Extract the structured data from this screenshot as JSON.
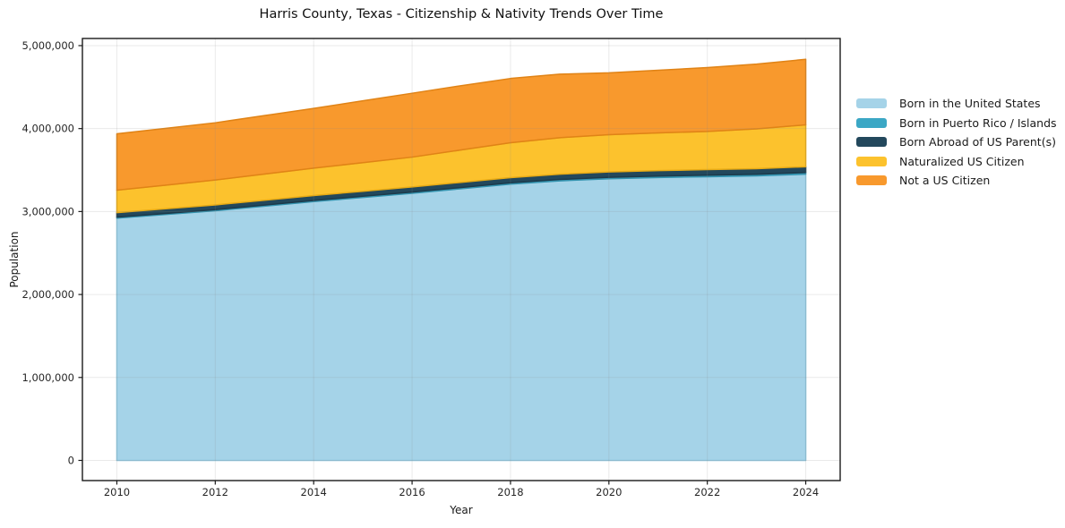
{
  "chart_data": {
    "type": "area",
    "stacked": true,
    "title": "Harris County, Texas - Citizenship & Nativity Trends Over Time",
    "xlabel": "Year",
    "ylabel": "Population",
    "x": [
      2010,
      2011,
      2012,
      2013,
      2014,
      2015,
      2016,
      2017,
      2018,
      2019,
      2020,
      2021,
      2022,
      2023,
      2024
    ],
    "series": [
      {
        "name": "Born in the United States",
        "color": "#a5d3e8",
        "edge": "#8ec6de",
        "values": [
          2920000,
          2965000,
          3010000,
          3065000,
          3120000,
          3170000,
          3220000,
          3275000,
          3330000,
          3370000,
          3395000,
          3410000,
          3420000,
          3430000,
          3450000
        ]
      },
      {
        "name": "Born in Puerto Rico / Islands",
        "color": "#3ba7c5",
        "edge": "#3494b0",
        "values": [
          12000,
          12500,
          13000,
          13500,
          14000,
          14500,
          15000,
          15500,
          16000,
          16500,
          17000,
          17500,
          18000,
          19000,
          20000
        ]
      },
      {
        "name": "Born Abroad of US Parent(s)",
        "color": "#23485c",
        "edge": "#1c3a4b",
        "values": [
          55000,
          56000,
          57000,
          58000,
          59000,
          60000,
          61000,
          62000,
          63000,
          64000,
          65000,
          66000,
          67000,
          68000,
          70000
        ]
      },
      {
        "name": "Naturalized US Citizen",
        "color": "#fcc22d",
        "edge": "#e8ab15",
        "values": [
          270000,
          285000,
          300000,
          315000,
          330000,
          345000,
          360000,
          390000,
          420000,
          440000,
          450000,
          455000,
          460000,
          480000,
          505000
        ]
      },
      {
        "name": "Not a US Citizen",
        "color": "#f8992d",
        "edge": "#e08316",
        "values": [
          680000,
          685000,
          690000,
          705000,
          720000,
          745000,
          770000,
          775000,
          775000,
          765000,
          745000,
          755000,
          770000,
          780000,
          790000
        ]
      }
    ],
    "x_ticks": [
      {
        "value": 2010,
        "label": "2010"
      },
      {
        "value": 2012,
        "label": "2012"
      },
      {
        "value": 2014,
        "label": "2014"
      },
      {
        "value": 2016,
        "label": "2016"
      },
      {
        "value": 2018,
        "label": "2018"
      },
      {
        "value": 2020,
        "label": "2020"
      },
      {
        "value": 2022,
        "label": "2022"
      },
      {
        "value": 2024,
        "label": "2024"
      }
    ],
    "y_ticks": [
      {
        "value": 0,
        "label": "0"
      },
      {
        "value": 1000000,
        "label": "1,000,000"
      },
      {
        "value": 2000000,
        "label": "2,000,000"
      },
      {
        "value": 3000000,
        "label": "3,000,000"
      },
      {
        "value": 4000000,
        "label": "4,000,000"
      },
      {
        "value": 5000000,
        "label": "5,000,000"
      }
    ],
    "xlim": [
      2009.3,
      2024.7
    ],
    "ylim": [
      -243000,
      5086000
    ],
    "grid": true,
    "legend_position": "right-outside",
    "colors": {
      "spine": "#1a1a1a",
      "tick_label": "#262626",
      "gridline": "rgba(140,140,140,0.18)",
      "background": "#ffffff"
    }
  }
}
